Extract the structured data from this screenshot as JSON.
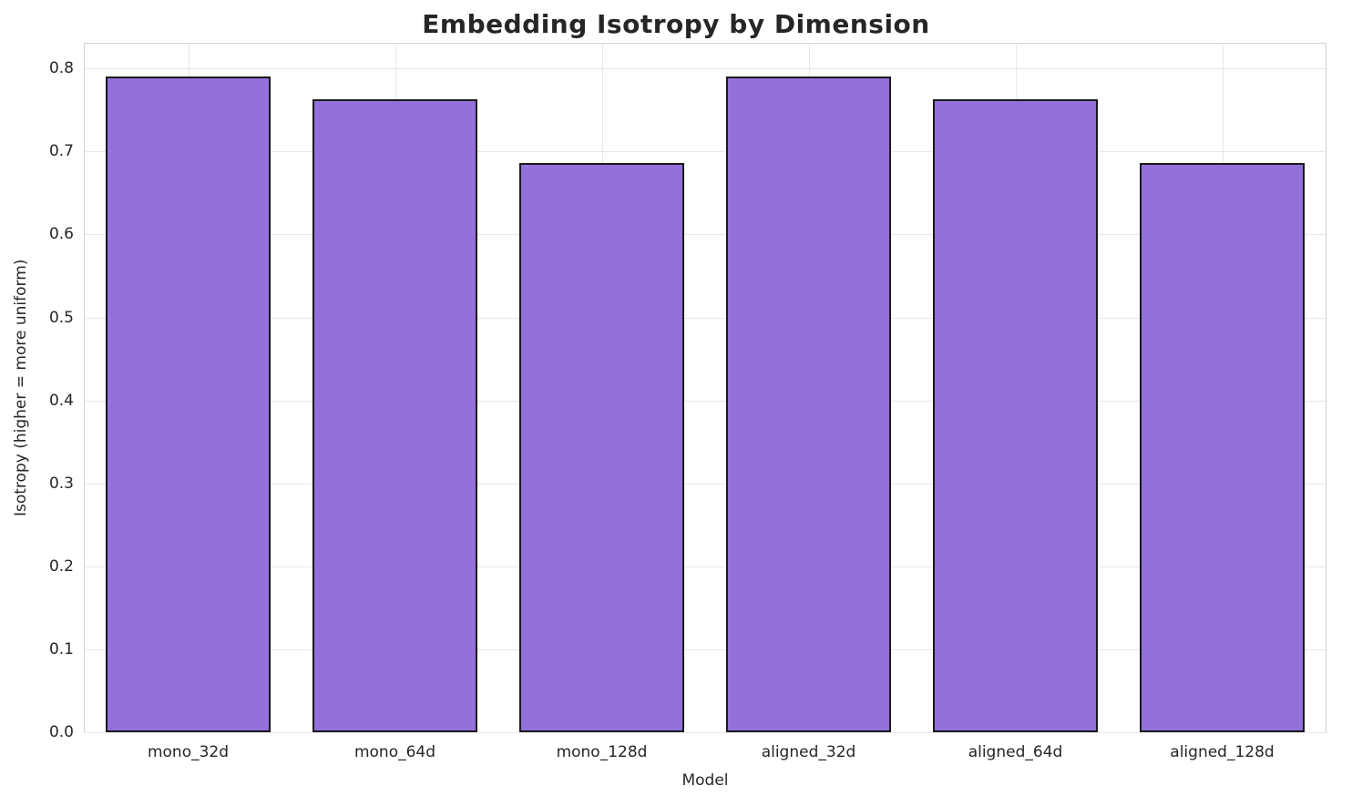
{
  "chart_data": {
    "type": "bar",
    "title": "Embedding Isotropy by Dimension",
    "xlabel": "Model",
    "ylabel": "Isotropy (higher = more uniform)",
    "categories": [
      "mono_32d",
      "mono_64d",
      "mono_128d",
      "aligned_32d",
      "aligned_64d",
      "aligned_128d"
    ],
    "values": [
      0.79,
      0.763,
      0.686,
      0.79,
      0.763,
      0.686
    ],
    "ylim": [
      0,
      0.83
    ],
    "yticks": [
      0.0,
      0.1,
      0.2,
      0.3,
      0.4,
      0.5,
      0.6,
      0.7,
      0.8
    ],
    "grid": "on",
    "legend": "none",
    "bar_width_fraction": 0.8,
    "bar_color": "#9370db",
    "bar_edge_color": "#1a1a1a",
    "grid_color": "#e7e7ea",
    "background_color": "#ffffff",
    "text_color": "#262626"
  }
}
